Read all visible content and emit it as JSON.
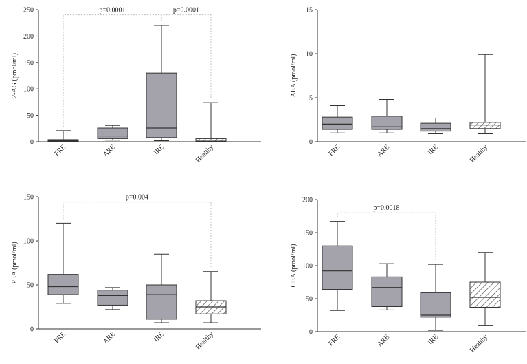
{
  "colors": {
    "box_fill": "#a4a3ab",
    "healthy_fill": "#ffffff",
    "hatch": "#555555",
    "stroke": "#333333",
    "bracket": "#b8b8b8"
  },
  "chart_data": [
    {
      "type": "boxplot",
      "ylabel": "2-AG (pmol/ml)",
      "ylim": [
        0,
        250
      ],
      "yticks": [
        0,
        50,
        100,
        150,
        200,
        250
      ],
      "yticks_label": [
        "0",
        "50",
        "100",
        "150",
        "200",
        "250"
      ],
      "categories": [
        "FRE",
        "ARE",
        "IRE",
        "Healthy"
      ],
      "boxes": [
        {
          "min": 0,
          "q1": 1,
          "median": 2,
          "q3": 4,
          "max": 21
        },
        {
          "min": 3,
          "q1": 6,
          "median": 11,
          "q3": 26,
          "max": 31
        },
        {
          "min": 2,
          "q1": 8,
          "median": 26,
          "q3": 130,
          "max": 220
        },
        {
          "min": 0,
          "q1": 1,
          "median": 3,
          "q3": 6,
          "max": 74
        }
      ],
      "brackets": [
        {
          "from": 0,
          "to": 2,
          "label": "p=0.0001",
          "y": 240
        },
        {
          "from": 2,
          "to": 3,
          "label": "p=0.0001",
          "y": 240
        }
      ]
    },
    {
      "type": "boxplot",
      "ylabel": "AEA (pmol/ml)",
      "ylim": [
        0,
        15
      ],
      "yticks": [
        0,
        5,
        10,
        15
      ],
      "yticks_label": [
        "0",
        "5",
        "10",
        "15"
      ],
      "categories": [
        "FRE",
        "ARE",
        "IRE",
        "Healthy"
      ],
      "boxes": [
        {
          "min": 1.0,
          "q1": 1.4,
          "median": 2.0,
          "q3": 2.8,
          "max": 4.1
        },
        {
          "min": 1.0,
          "q1": 1.4,
          "median": 1.7,
          "q3": 2.9,
          "max": 4.8
        },
        {
          "min": 0.9,
          "q1": 1.2,
          "median": 1.5,
          "q3": 2.1,
          "max": 2.7
        },
        {
          "min": 0.9,
          "q1": 1.5,
          "median": 1.9,
          "q3": 2.2,
          "max": 9.9
        }
      ],
      "brackets": []
    },
    {
      "type": "boxplot",
      "ylabel": "PEA (pmol/ml)",
      "ylim": [
        0,
        150
      ],
      "yticks": [
        0,
        50,
        100,
        150
      ],
      "yticks_label": [
        "0",
        "50",
        "100",
        "150"
      ],
      "categories": [
        "FRE",
        "ARE",
        "IRE",
        "Healthy"
      ],
      "boxes": [
        {
          "min": 29,
          "q1": 39,
          "median": 48,
          "q3": 62,
          "max": 120
        },
        {
          "min": 22,
          "q1": 27,
          "median": 38,
          "q3": 44,
          "max": 47
        },
        {
          "min": 7,
          "q1": 11,
          "median": 39,
          "q3": 50,
          "max": 85
        },
        {
          "min": 7,
          "q1": 17,
          "median": 25,
          "q3": 32,
          "max": 65
        }
      ],
      "brackets": [
        {
          "from": 0,
          "to": 3,
          "label": "p=0.004",
          "y": 144
        }
      ]
    },
    {
      "type": "boxplot",
      "ylabel": "OEA (pmol/ml)",
      "ylim": [
        0,
        200
      ],
      "yticks": [
        0,
        50,
        100,
        150,
        200
      ],
      "yticks_label": [
        "0",
        "50",
        "100",
        "150",
        "200"
      ],
      "categories": [
        "FRE",
        "ARE",
        "IRE",
        "Healthy"
      ],
      "boxes": [
        {
          "min": 32,
          "q1": 64,
          "median": 92,
          "q3": 130,
          "max": 167
        },
        {
          "min": 33,
          "q1": 38,
          "median": 67,
          "q3": 83,
          "max": 103
        },
        {
          "min": 2,
          "q1": 22,
          "median": 25,
          "q3": 59,
          "max": 102
        },
        {
          "min": 9,
          "q1": 37,
          "median": 52,
          "q3": 75,
          "max": 120
        }
      ],
      "brackets": [
        {
          "from": 0,
          "to": 2,
          "label": "p=0.0018",
          "y": 180
        }
      ]
    }
  ]
}
